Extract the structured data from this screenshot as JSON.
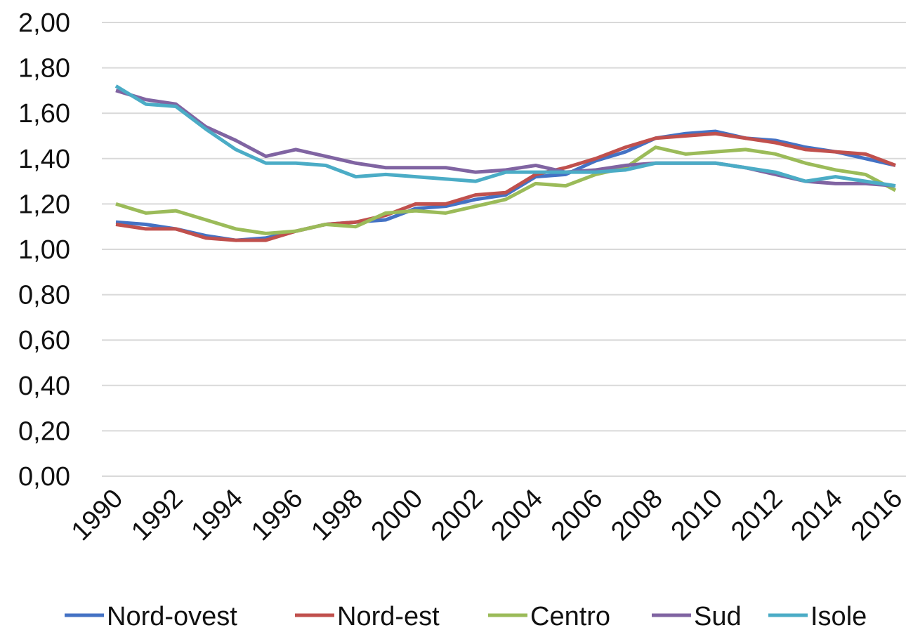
{
  "chart_data": {
    "type": "line",
    "categories": [
      "1990",
      null,
      "1992",
      null,
      "1994",
      null,
      "1996",
      null,
      "1998",
      null,
      "2000",
      null,
      "2002",
      null,
      "2004",
      null,
      "2006",
      null,
      "2008",
      null,
      "2010",
      null,
      "2012",
      null,
      "2014",
      null,
      "2016"
    ],
    "series": [
      {
        "name": "Nord-ovest",
        "color": "#4472c4",
        "values": [
          1.12,
          1.11,
          1.09,
          1.06,
          1.04,
          1.05,
          1.08,
          1.11,
          1.12,
          1.13,
          1.18,
          1.19,
          1.22,
          1.24,
          1.32,
          1.33,
          1.39,
          1.43,
          1.49,
          1.51,
          1.52,
          1.49,
          1.48,
          1.45,
          1.43,
          1.4,
          1.37
        ]
      },
      {
        "name": "Nord-est",
        "color": "#c0504d",
        "values": [
          1.11,
          1.09,
          1.09,
          1.05,
          1.04,
          1.04,
          1.08,
          1.11,
          1.12,
          1.15,
          1.2,
          1.2,
          1.24,
          1.25,
          1.33,
          1.36,
          1.4,
          1.45,
          1.49,
          1.5,
          1.51,
          1.49,
          1.47,
          1.44,
          1.43,
          1.42,
          1.37
        ]
      },
      {
        "name": "Centro",
        "color": "#9bbb59",
        "values": [
          1.2,
          1.16,
          1.17,
          1.13,
          1.09,
          1.07,
          1.08,
          1.11,
          1.1,
          1.16,
          1.17,
          1.16,
          1.19,
          1.22,
          1.29,
          1.28,
          1.33,
          1.36,
          1.45,
          1.42,
          1.43,
          1.44,
          1.42,
          1.38,
          1.35,
          1.33,
          1.26
        ]
      },
      {
        "name": "Sud",
        "color": "#8064a2",
        "values": [
          1.7,
          1.66,
          1.64,
          1.54,
          1.48,
          1.41,
          1.44,
          1.41,
          1.38,
          1.36,
          1.36,
          1.36,
          1.34,
          1.35,
          1.37,
          1.34,
          1.35,
          1.37,
          1.38,
          1.38,
          1.38,
          1.36,
          1.33,
          1.3,
          1.29,
          1.29,
          1.28
        ]
      },
      {
        "name": "Isole",
        "color": "#4bacc6",
        "values": [
          1.72,
          1.64,
          1.63,
          1.53,
          1.44,
          1.38,
          1.38,
          1.37,
          1.32,
          1.33,
          1.32,
          1.31,
          1.3,
          1.34,
          1.34,
          1.34,
          1.34,
          1.35,
          1.38,
          1.38,
          1.38,
          1.36,
          1.34,
          1.3,
          1.32,
          1.3,
          1.28
        ]
      }
    ],
    "ylim": [
      0,
      2
    ],
    "yticks": [
      {
        "value": 0,
        "label": "0,00"
      },
      {
        "value": 0.2,
        "label": "0,20"
      },
      {
        "value": 0.4,
        "label": "0,40"
      },
      {
        "value": 0.6,
        "label": "0,60"
      },
      {
        "value": 0.8,
        "label": "0,80"
      },
      {
        "value": 1,
        "label": "1,00"
      },
      {
        "value": 1.2,
        "label": "1,20"
      },
      {
        "value": 1.4,
        "label": "1,40"
      },
      {
        "value": 1.6,
        "label": "1,60"
      },
      {
        "value": 1.8,
        "label": "1,80"
      },
      {
        "value": 2,
        "label": "2,00"
      }
    ],
    "grid": true,
    "legend": "bottom"
  }
}
